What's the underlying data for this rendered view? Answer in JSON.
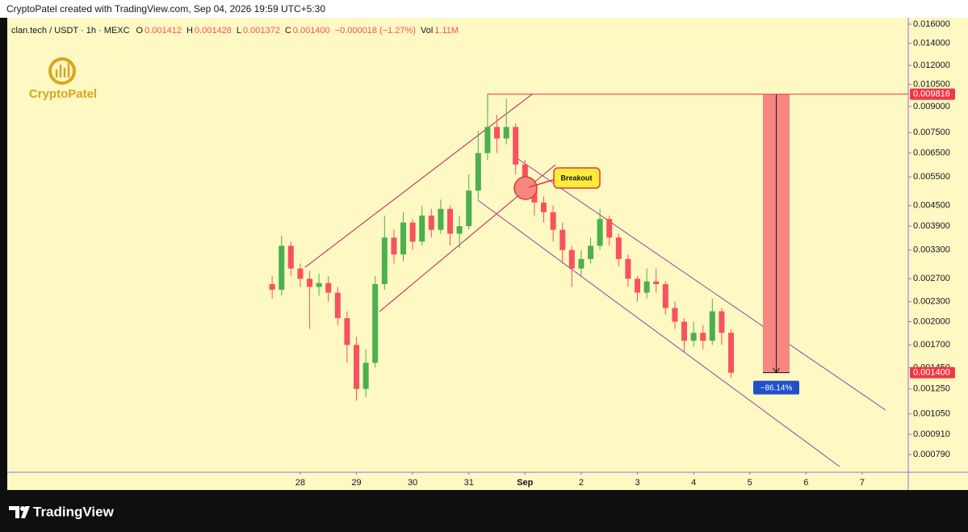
{
  "header": "CryptoPatel created with TradingView.com, Sep 04, 2026 19:59 UTC+5:30",
  "logo_text": "CryptoPatel",
  "footer_brand": "TradingView",
  "chart_data": {
    "type": "candlestick",
    "symbol": "clan.tech / USDT · 1h · MEXC",
    "legend": [
      {
        "key": "O",
        "value": "0.001412"
      },
      {
        "key": "H",
        "value": "0.001428"
      },
      {
        "key": "L",
        "value": "0.001372"
      },
      {
        "key": "C",
        "value": "0.001400"
      }
    ],
    "change": "−0.000018 (−1.27%)",
    "volume": {
      "key": "Vol",
      "value": "1.11M"
    },
    "annotations": {
      "breakout": "Breakout",
      "measure": "−86.14%"
    },
    "log_scale": true,
    "up_color": "#4caf50",
    "down_color": "#f7525f",
    "x": [
      27.5,
      27.667,
      27.833,
      28,
      28.167,
      28.333,
      28.5,
      28.667,
      28.833,
      29,
      29.167,
      29.333,
      29.5,
      29.667,
      29.833,
      30,
      30.167,
      30.333,
      30.5,
      30.667,
      30.833,
      31,
      31.167,
      31.333,
      31.5,
      31.667,
      31.833,
      32,
      32.167,
      32.333,
      32.5,
      32.667,
      32.833,
      33,
      33.167,
      33.333,
      33.5,
      33.667,
      33.833,
      34,
      34.167,
      34.333,
      34.5,
      34.667,
      34.833,
      35,
      35.167,
      35.333,
      35.5,
      35.667
    ],
    "open": [
      0.0026,
      0.0025,
      0.0034,
      0.0029,
      0.0027,
      0.00255,
      0.00262,
      0.00245,
      0.00205,
      0.0017,
      0.00125,
      0.0015,
      0.0026,
      0.0036,
      0.0032,
      0.004,
      0.0035,
      0.0042,
      0.0038,
      0.0044,
      0.0037,
      0.0039,
      0.005,
      0.0065,
      0.0078,
      0.0072,
      0.0078,
      0.006,
      0.0052,
      0.0046,
      0.0043,
      0.0038,
      0.0033,
      0.0029,
      0.0031,
      0.0034,
      0.0041,
      0.0036,
      0.0031,
      0.0027,
      0.00245,
      0.00265,
      0.0026,
      0.0022,
      0.002,
      0.00175,
      0.00185,
      0.00175,
      0.00215,
      0.00185
    ],
    "high": [
      0.00275,
      0.00365,
      0.0035,
      0.003,
      0.00285,
      0.0028,
      0.00275,
      0.00255,
      0.00215,
      0.0018,
      0.00165,
      0.00275,
      0.0042,
      0.0038,
      0.0043,
      0.0041,
      0.0045,
      0.0044,
      0.0047,
      0.0045,
      0.0042,
      0.0056,
      0.0076,
      0.00981,
      0.0085,
      0.0095,
      0.008,
      0.0062,
      0.0054,
      0.0048,
      0.0045,
      0.004,
      0.0034,
      0.0033,
      0.0036,
      0.0044,
      0.0042,
      0.0037,
      0.0032,
      0.00275,
      0.0029,
      0.0029,
      0.00265,
      0.0023,
      0.00205,
      0.002,
      0.00195,
      0.00235,
      0.0022,
      0.0019
    ],
    "low": [
      0.00235,
      0.0024,
      0.00275,
      0.00255,
      0.0019,
      0.0024,
      0.0023,
      0.00195,
      0.0015,
      0.00115,
      0.00118,
      0.00145,
      0.0025,
      0.003,
      0.00305,
      0.0033,
      0.0034,
      0.0036,
      0.0037,
      0.0034,
      0.00335,
      0.0038,
      0.0047,
      0.0062,
      0.0065,
      0.0069,
      0.0056,
      0.0048,
      0.0042,
      0.004,
      0.0035,
      0.003,
      0.00255,
      0.00275,
      0.003,
      0.0033,
      0.0034,
      0.00295,
      0.00255,
      0.0023,
      0.00235,
      0.00245,
      0.0021,
      0.0019,
      0.00162,
      0.00168,
      0.00165,
      0.0017,
      0.0017,
      0.00135
    ],
    "close": [
      0.0025,
      0.0034,
      0.0029,
      0.0027,
      0.00255,
      0.00262,
      0.00245,
      0.00205,
      0.0017,
      0.00125,
      0.0015,
      0.0026,
      0.0036,
      0.0032,
      0.004,
      0.0035,
      0.0042,
      0.0038,
      0.0044,
      0.0037,
      0.0039,
      0.005,
      0.0065,
      0.0078,
      0.0072,
      0.0078,
      0.006,
      0.0052,
      0.0046,
      0.0043,
      0.0038,
      0.0033,
      0.0029,
      0.0031,
      0.0034,
      0.0041,
      0.0036,
      0.0031,
      0.0027,
      0.00245,
      0.00265,
      0.0026,
      0.0022,
      0.002,
      0.00175,
      0.00185,
      0.00175,
      0.00215,
      0.00185,
      0.0014
    ],
    "xlim": [
      22.8,
      38.82
    ],
    "xticks": [
      {
        "value": 28,
        "label": "28"
      },
      {
        "value": 29,
        "label": "29"
      },
      {
        "value": 30,
        "label": "30"
      },
      {
        "value": 31,
        "label": "31"
      },
      {
        "value": 32,
        "label": "Sep"
      },
      {
        "value": 33,
        "label": "2"
      },
      {
        "value": 34,
        "label": "3"
      },
      {
        "value": 35,
        "label": "4"
      },
      {
        "value": 36,
        "label": "5"
      },
      {
        "value": 37,
        "label": "6"
      },
      {
        "value": 38,
        "label": "7"
      }
    ],
    "ylim": [
      0.000698,
      0.01674
    ],
    "yticks": [
      {
        "value": 0.016,
        "label": "0.016000"
      },
      {
        "value": 0.014,
        "label": "0.014000"
      },
      {
        "value": 0.012,
        "label": "0.012000"
      },
      {
        "value": 0.0105,
        "label": "0.010500"
      },
      {
        "value": 0.009,
        "label": "0.009000"
      },
      {
        "value": 0.0075,
        "label": "0.007500"
      },
      {
        "value": 0.0065,
        "label": "0.006500"
      },
      {
        "value": 0.0055,
        "label": "0.005500"
      },
      {
        "value": 0.0045,
        "label": "0.004500"
      },
      {
        "value": 0.0039,
        "label": "0.003900"
      },
      {
        "value": 0.0033,
        "label": "0.003300"
      },
      {
        "value": 0.0027,
        "label": "0.002700"
      },
      {
        "value": 0.0023,
        "label": "0.002300"
      },
      {
        "value": 0.002,
        "label": "0.002000"
      },
      {
        "value": 0.0017,
        "label": "0.001700"
      },
      {
        "value": 0.00145,
        "label": "0.001450"
      },
      {
        "value": 0.00125,
        "label": "0.001250"
      },
      {
        "value": 0.00105,
        "label": "0.001050"
      },
      {
        "value": 0.00091,
        "label": "0.000910"
      },
      {
        "value": 0.00079,
        "label": "0.000790"
      }
    ],
    "price_lines": [
      {
        "value": 0.009816,
        "label": "0.009816",
        "color": "#f23645"
      },
      {
        "value": 0.0014,
        "label": "0.001400",
        "color": "#f23645"
      }
    ],
    "measure_color": "#f8877f",
    "measure_label_color": "#1e50c8"
  }
}
